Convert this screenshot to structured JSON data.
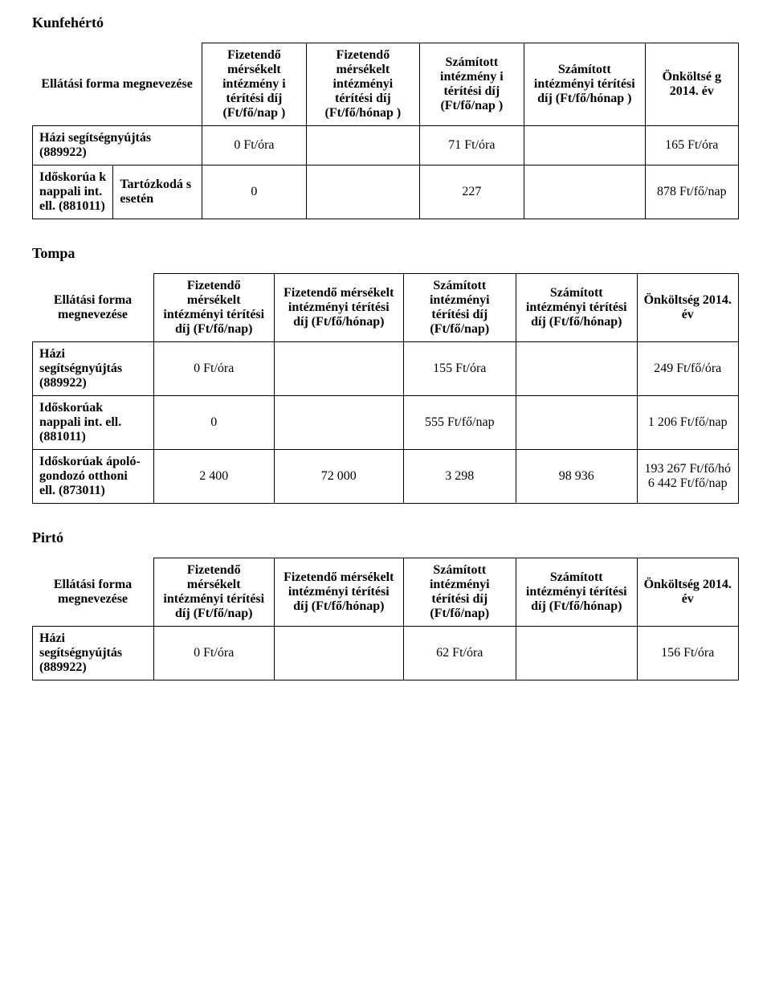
{
  "sections": {
    "kunfeherto": {
      "title": "Kunfehértó"
    },
    "tompa": {
      "title": "Tompa"
    },
    "pirto": {
      "title": "Pirtó"
    }
  },
  "common": {
    "ellatasi_forma": "Ellátási forma megnevezése"
  },
  "table1": {
    "headers": {
      "h1": "Fizetendő mérsékelt intézmény i térítési díj (Ft/fő/nap )",
      "h2": "Fizetendő mérsékelt intézményi térítési díj (Ft/fő/hónap )",
      "h3": "Számított intézmény i térítési díj (Ft/fő/nap )",
      "h4": "Számított intézményi térítési díj (Ft/fő/hónap )",
      "h5": "Önköltsé g 2014. év"
    },
    "rows": {
      "r1": {
        "label": "Házi segítségnyújtás (889922)",
        "v1": "0 Ft/óra",
        "v2": "",
        "v3": "71 Ft/óra",
        "v4": "",
        "v5": "165 Ft/óra"
      },
      "r2": {
        "label": "Időskorúa k nappali int. ell. (881011)",
        "sub": "Tartózkodá s esetén",
        "v1": "0",
        "v2": "",
        "v3": "227",
        "v4": "",
        "v5": "878 Ft/fő/nap"
      }
    }
  },
  "headers_std": {
    "h1": "Fizetendő mérsékelt intézményi térítési díj (Ft/fő/nap)",
    "h2": "Fizetendő mérsékelt intézményi térítési díj (Ft/fő/hónap)",
    "h3": "Számított intézményi térítési díj (Ft/fő/nap)",
    "h4": "Számított intézményi térítési díj (Ft/fő/hónap)",
    "h5": "Önköltség 2014. év"
  },
  "table2": {
    "rows": {
      "r1": {
        "label": "Házi segítségnyújtás (889922)",
        "v1": "0 Ft/óra",
        "v2": "",
        "v3": "155 Ft/óra",
        "v4": "",
        "v5": "249 Ft/fő/óra"
      },
      "r2": {
        "label": "Időskorúak nappali int. ell. (881011)",
        "v1": "0",
        "v2": "",
        "v3": "555 Ft/fő/nap",
        "v4": "",
        "v5": "1 206 Ft/fő/nap"
      },
      "r3": {
        "label": "Időskorúak ápoló-gondozó otthoni ell. (873011)",
        "v1": "2 400",
        "v2": "72 000",
        "v3": "3 298",
        "v4": "98 936",
        "v5": "193 267 Ft/fő/hó 6 442 Ft/fő/nap"
      }
    }
  },
  "table3": {
    "rows": {
      "r1": {
        "label": "Házi segítségnyújtás (889922)",
        "v1": "0 Ft/óra",
        "v2": "",
        "v3": "62 Ft/óra",
        "v4": "",
        "v5": "156 Ft/óra"
      }
    }
  }
}
